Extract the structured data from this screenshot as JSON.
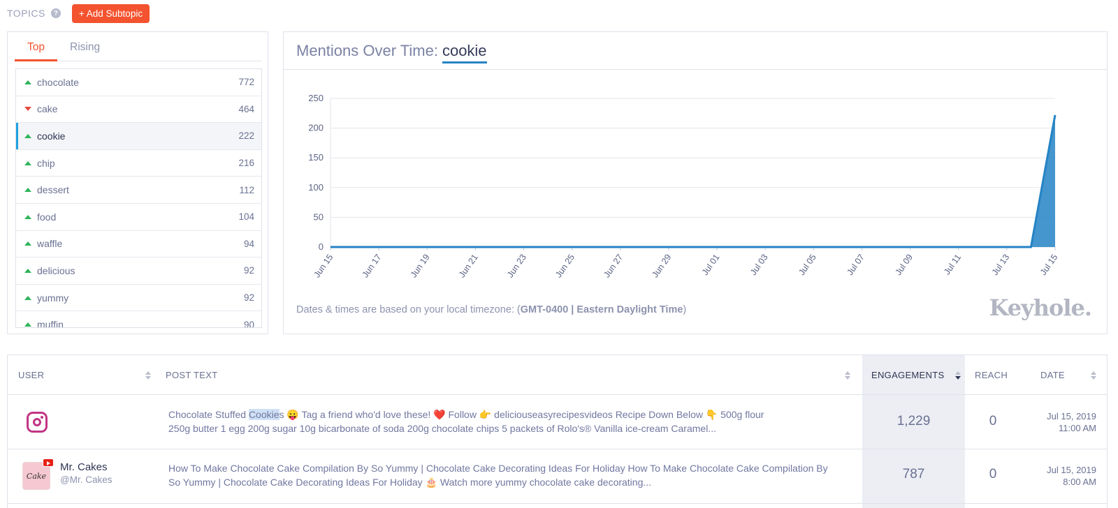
{
  "header": {
    "topics_label": "TOPICS",
    "add_button": "+ Add Subtopic"
  },
  "subtopics": {
    "tabs": [
      {
        "label": "Top",
        "active": true
      },
      {
        "label": "Rising",
        "active": false
      }
    ],
    "items": [
      {
        "name": "chocolate",
        "count": "772",
        "trend": "up"
      },
      {
        "name": "cake",
        "count": "464",
        "trend": "down"
      },
      {
        "name": "cookie",
        "count": "222",
        "trend": "up",
        "selected": true
      },
      {
        "name": "chip",
        "count": "216",
        "trend": "up"
      },
      {
        "name": "dessert",
        "count": "112",
        "trend": "up"
      },
      {
        "name": "food",
        "count": "104",
        "trend": "up"
      },
      {
        "name": "waffle",
        "count": "94",
        "trend": "up"
      },
      {
        "name": "delicious",
        "count": "92",
        "trend": "up"
      },
      {
        "name": "yummy",
        "count": "92",
        "trend": "up"
      },
      {
        "name": "muffin",
        "count": "90",
        "trend": "up"
      }
    ]
  },
  "chart_panel": {
    "title_prefix": "Mentions Over Time:",
    "title_term": "cookie",
    "tz_prefix": "Dates & times are based on your local timezone: (",
    "tz_value": "GMT-0400 | Eastern Daylight Time",
    "tz_suffix": ")",
    "logo_text": "Keyhole."
  },
  "chart_data": {
    "type": "area",
    "title": "Mentions Over Time: cookie",
    "xlabel": "",
    "ylabel": "",
    "ylim": [
      0,
      250
    ],
    "yticks": [
      0,
      50,
      100,
      150,
      200,
      250
    ],
    "x_tick_labels": [
      "Jun 15",
      "Jun 17",
      "Jun 19",
      "Jun 21",
      "Jun 23",
      "Jun 25",
      "Jun 27",
      "Jun 29",
      "Jul 01",
      "Jul 03",
      "Jul 05",
      "Jul 07",
      "Jul 09",
      "Jul 11",
      "Jul 13",
      "Jul 15"
    ],
    "x": [
      "Jun 15",
      "Jun 16",
      "Jun 17",
      "Jun 18",
      "Jun 19",
      "Jun 20",
      "Jun 21",
      "Jun 22",
      "Jun 23",
      "Jun 24",
      "Jun 25",
      "Jun 26",
      "Jun 27",
      "Jun 28",
      "Jun 29",
      "Jun 30",
      "Jul 01",
      "Jul 02",
      "Jul 03",
      "Jul 04",
      "Jul 05",
      "Jul 06",
      "Jul 07",
      "Jul 08",
      "Jul 09",
      "Jul 10",
      "Jul 11",
      "Jul 12",
      "Jul 13",
      "Jul 14",
      "Jul 15"
    ],
    "values": [
      0,
      0,
      0,
      0,
      0,
      0,
      0,
      0,
      0,
      0,
      0,
      0,
      0,
      0,
      0,
      0,
      0,
      0,
      0,
      0,
      0,
      0,
      0,
      0,
      0,
      0,
      0,
      0,
      0,
      0,
      222
    ],
    "grid": true,
    "color": "#2583c5"
  },
  "table": {
    "columns": {
      "user": "USER",
      "post_text": "POST TEXT",
      "engagements": "ENGAGEMENTS",
      "reach": "REACH",
      "date": "DATE"
    },
    "rows": [
      {
        "platform": "instagram-icon",
        "user_name": "",
        "user_handle": "",
        "post_before": "Chocolate Stuffed ",
        "post_highlight": "Cookie",
        "post_after": "s 😛  Tag a friend who'd love these! ❤️     Follow 👉 deliciouseasyrecipesvideos     Recipe Down Below 👇      500g flour",
        "post_line2": "250g butter    1 egg    200g sugar    10g bicarbonate of soda    200g chocolate chips    5 packets of Rolo's®    Vanilla ice-cream    Caramel...",
        "engagements": "1,229",
        "reach": "0",
        "date": "Jul 15, 2019",
        "time": "11:00 AM"
      },
      {
        "platform": "youtube-icon",
        "user_name": "Mr. Cakes",
        "user_handle": "@Mr. Cakes",
        "avatar_text": "Cake",
        "post_line1": "How To Make Chocolate Cake Compilation By So Yummy | Chocolate Cake Decorating Ideas For Holiday How To Make Chocolate Cake Compilation By",
        "post_line2": "So Yummy | Chocolate Cake Decorating Ideas For Holiday 🎂  Watch more yummy chocolate cake decorating...",
        "engagements": "787",
        "reach": "0",
        "date": "Jul 15, 2019",
        "time": "8:00 AM"
      }
    ]
  }
}
